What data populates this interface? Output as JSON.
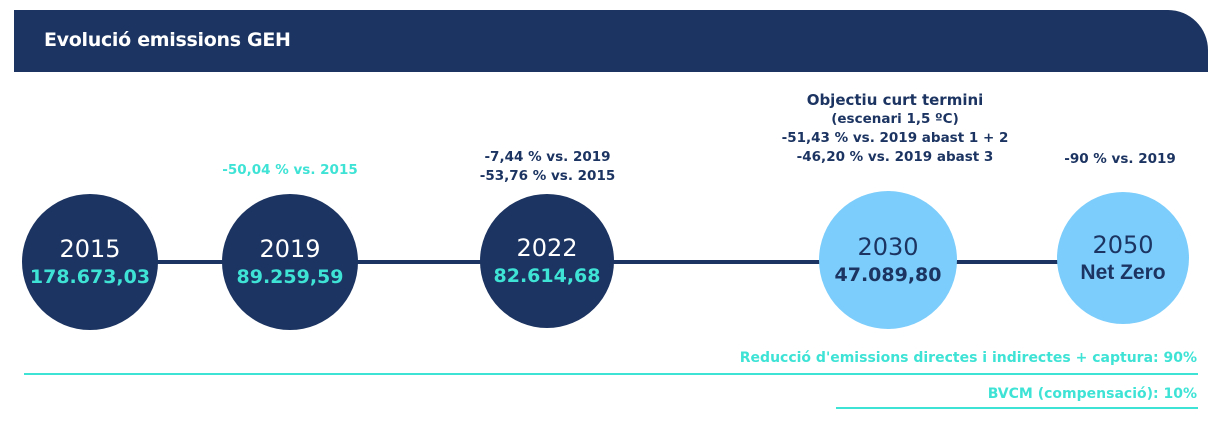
{
  "header": {
    "title": "Evolució emissions GEH"
  },
  "nodes": [
    {
      "year": "2015",
      "value": "178.673,03"
    },
    {
      "year": "2019",
      "value": "89.259,59"
    },
    {
      "year": "2022",
      "value": "82.614,68"
    },
    {
      "year": "2030",
      "value": "47.089,80"
    },
    {
      "year": "2050",
      "value": "Net Zero"
    }
  ],
  "annotations": {
    "n2019": "-50,04 % vs. 2015",
    "n2022": [
      "-7,44 % vs. 2019",
      "-53,76 % vs. 2015"
    ],
    "n2030": [
      "Objectiu curt termini",
      "(escenari 1,5 ºC)",
      "-51,43 % vs. 2019 abast 1 + 2",
      "-46,20 % vs. 2019 abast 3"
    ],
    "n2050": "-90 % vs. 2019"
  },
  "footer": {
    "line1": "Reducció d'emissions directes i indirectes + captura: 90%",
    "line2": "BVCM (compensació): 10%"
  },
  "colors": {
    "navy": "#1c3461",
    "light_blue": "#7ccdfb",
    "teal": "#3fe3d6"
  }
}
